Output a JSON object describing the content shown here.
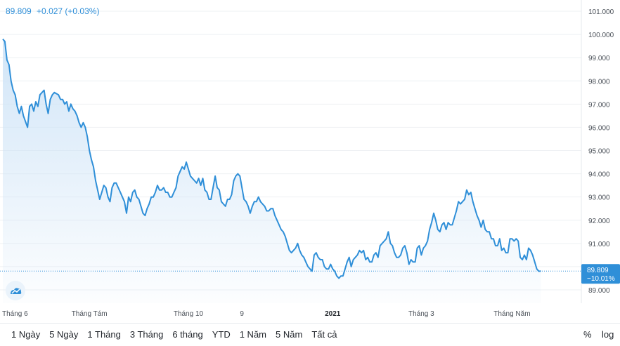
{
  "header": {
    "price": "89.809",
    "change": "+0.027 (+0.03%)"
  },
  "price_label": {
    "price": "89.809",
    "change_pct": "−10.01%"
  },
  "ranges": [
    "1 Ngày",
    "5 Ngày",
    "1 Tháng",
    "3 Tháng",
    "6 tháng",
    "YTD",
    "1 Năm",
    "5 Năm",
    "Tất cả"
  ],
  "scale": {
    "percent": "%",
    "log": "log"
  },
  "colors": {
    "line": "#2f8fd8",
    "fill_top": "#cfe4f7",
    "grid": "#eef0f3",
    "label_bg": "#2f8fd8"
  },
  "icons": {
    "logo": "tradingview-cloud-icon"
  },
  "chart_data": {
    "type": "area",
    "y_ticks": [
      "89.000",
      "90.000",
      "91.000",
      "92.000",
      "93.000",
      "94.000",
      "95.000",
      "96.000",
      "97.000",
      "98.000",
      "99.000",
      "100.000",
      "101.000"
    ],
    "x_ticks": [
      {
        "label": "Tháng 6",
        "x": 0,
        "bold": false
      },
      {
        "label": "Tháng Tám",
        "x": 42,
        "bold": false
      },
      {
        "label": "Tháng 10",
        "x": 90,
        "bold": false
      },
      {
        "label": "9",
        "x": 116,
        "bold": false
      },
      {
        "label": "2021",
        "x": 160,
        "bold": true
      },
      {
        "label": "Tháng 3",
        "x": 203,
        "bold": false
      },
      {
        "label": "Tháng Năm",
        "x": 247,
        "bold": false
      }
    ],
    "ylim": [
      88.1,
      101.3
    ],
    "xlim": [
      0,
      268
    ],
    "last_value": 89.809,
    "points": [
      [
        0,
        99.8
      ],
      [
        1,
        99.7
      ],
      [
        2,
        98.9
      ],
      [
        3,
        98.7
      ],
      [
        4,
        98.0
      ],
      [
        5,
        97.6
      ],
      [
        6,
        97.4
      ],
      [
        7,
        96.9
      ],
      [
        8,
        96.6
      ],
      [
        9,
        96.9
      ],
      [
        10,
        96.5
      ],
      [
        12,
        96.0
      ],
      [
        13,
        96.9
      ],
      [
        14,
        97.0
      ],
      [
        15,
        96.7
      ],
      [
        16,
        97.1
      ],
      [
        17,
        96.9
      ],
      [
        18,
        97.4
      ],
      [
        20,
        97.6
      ],
      [
        21,
        97.0
      ],
      [
        22,
        96.6
      ],
      [
        23,
        97.2
      ],
      [
        24,
        97.4
      ],
      [
        25,
        97.5
      ],
      [
        27,
        97.4
      ],
      [
        28,
        97.2
      ],
      [
        29,
        97.2
      ],
      [
        30,
        97.0
      ],
      [
        31,
        97.1
      ],
      [
        32,
        96.7
      ],
      [
        33,
        97.0
      ],
      [
        34,
        96.8
      ],
      [
        35,
        96.7
      ],
      [
        36,
        96.5
      ],
      [
        37,
        96.2
      ],
      [
        38,
        96.0
      ],
      [
        39,
        96.2
      ],
      [
        40,
        96.0
      ],
      [
        41,
        95.6
      ],
      [
        42,
        95.0
      ],
      [
        43,
        94.6
      ],
      [
        44,
        94.3
      ],
      [
        45,
        93.7
      ],
      [
        46,
        93.3
      ],
      [
        47,
        92.9
      ],
      [
        48,
        93.2
      ],
      [
        49,
        93.5
      ],
      [
        50,
        93.4
      ],
      [
        51,
        93.0
      ],
      [
        52,
        92.8
      ],
      [
        53,
        93.4
      ],
      [
        54,
        93.6
      ],
      [
        55,
        93.6
      ],
      [
        56,
        93.4
      ],
      [
        57,
        93.2
      ],
      [
        58,
        93.0
      ],
      [
        59,
        92.8
      ],
      [
        60,
        92.3
      ],
      [
        61,
        93.0
      ],
      [
        62,
        92.8
      ],
      [
        63,
        93.2
      ],
      [
        64,
        93.3
      ],
      [
        65,
        93.0
      ],
      [
        66,
        92.9
      ],
      [
        67,
        92.6
      ],
      [
        68,
        92.3
      ],
      [
        69,
        92.2
      ],
      [
        70,
        92.5
      ],
      [
        71,
        92.7
      ],
      [
        72,
        93.0
      ],
      [
        73,
        93.0
      ],
      [
        74,
        93.2
      ],
      [
        75,
        93.5
      ],
      [
        76,
        93.3
      ],
      [
        77,
        93.3
      ],
      [
        78,
        93.4
      ],
      [
        79,
        93.2
      ],
      [
        80,
        93.2
      ],
      [
        81,
        93.0
      ],
      [
        82,
        93.0
      ],
      [
        83,
        93.2
      ],
      [
        84,
        93.4
      ],
      [
        85,
        93.9
      ],
      [
        86,
        94.1
      ],
      [
        87,
        94.3
      ],
      [
        88,
        94.2
      ],
      [
        89,
        94.5
      ],
      [
        90,
        94.2
      ],
      [
        91,
        93.9
      ],
      [
        92,
        93.8
      ],
      [
        93,
        93.7
      ],
      [
        94,
        93.6
      ],
      [
        95,
        93.8
      ],
      [
        96,
        93.5
      ],
      [
        97,
        93.8
      ],
      [
        98,
        93.3
      ],
      [
        99,
        93.2
      ],
      [
        100,
        92.9
      ],
      [
        101,
        92.9
      ],
      [
        102,
        93.4
      ],
      [
        103,
        93.9
      ],
      [
        104,
        93.4
      ],
      [
        105,
        93.3
      ],
      [
        106,
        92.8
      ],
      [
        107,
        92.7
      ],
      [
        108,
        92.6
      ],
      [
        109,
        92.9
      ],
      [
        110,
        92.9
      ],
      [
        111,
        93.1
      ],
      [
        112,
        93.7
      ],
      [
        113,
        93.9
      ],
      [
        114,
        94.0
      ],
      [
        115,
        93.9
      ],
      [
        116,
        93.4
      ],
      [
        117,
        92.9
      ],
      [
        118,
        92.8
      ],
      [
        119,
        92.6
      ],
      [
        120,
        92.3
      ],
      [
        121,
        92.6
      ],
      [
        122,
        92.8
      ],
      [
        123,
        92.8
      ],
      [
        124,
        93.0
      ],
      [
        125,
        92.8
      ],
      [
        126,
        92.7
      ],
      [
        127,
        92.6
      ],
      [
        128,
        92.4
      ],
      [
        129,
        92.4
      ],
      [
        130,
        92.5
      ],
      [
        131,
        92.5
      ],
      [
        132,
        92.2
      ],
      [
        133,
        92.0
      ],
      [
        134,
        91.8
      ],
      [
        135,
        91.6
      ],
      [
        136,
        91.5
      ],
      [
        137,
        91.3
      ],
      [
        138,
        91.0
      ],
      [
        139,
        90.7
      ],
      [
        140,
        90.6
      ],
      [
        141,
        90.7
      ],
      [
        142,
        90.8
      ],
      [
        143,
        91.0
      ],
      [
        144,
        90.7
      ],
      [
        145,
        90.5
      ],
      [
        146,
        90.4
      ],
      [
        147,
        90.2
      ],
      [
        148,
        90.0
      ],
      [
        149,
        89.9
      ],
      [
        150,
        89.8
      ],
      [
        151,
        90.5
      ],
      [
        152,
        90.6
      ],
      [
        153,
        90.4
      ],
      [
        154,
        90.3
      ],
      [
        155,
        90.3
      ],
      [
        156,
        90.0
      ],
      [
        157,
        89.9
      ],
      [
        158,
        89.9
      ],
      [
        159,
        90.1
      ],
      [
        160,
        89.9
      ],
      [
        161,
        89.8
      ],
      [
        162,
        89.6
      ],
      [
        163,
        89.5
      ],
      [
        164,
        89.6
      ],
      [
        165,
        89.6
      ],
      [
        166,
        89.9
      ],
      [
        167,
        90.2
      ],
      [
        168,
        90.4
      ],
      [
        169,
        90.0
      ],
      [
        170,
        90.3
      ],
      [
        171,
        90.4
      ],
      [
        172,
        90.5
      ],
      [
        173,
        90.7
      ],
      [
        174,
        90.6
      ],
      [
        175,
        90.7
      ],
      [
        176,
        90.3
      ],
      [
        177,
        90.4
      ],
      [
        178,
        90.2
      ],
      [
        179,
        90.2
      ],
      [
        180,
        90.5
      ],
      [
        181,
        90.6
      ],
      [
        182,
        90.4
      ],
      [
        183,
        90.9
      ],
      [
        184,
        91.0
      ],
      [
        185,
        91.1
      ],
      [
        186,
        91.2
      ],
      [
        187,
        91.5
      ],
      [
        188,
        91.0
      ],
      [
        189,
        90.9
      ],
      [
        190,
        90.6
      ],
      [
        191,
        90.4
      ],
      [
        192,
        90.4
      ],
      [
        193,
        90.5
      ],
      [
        194,
        90.8
      ],
      [
        195,
        90.9
      ],
      [
        196,
        90.6
      ],
      [
        197,
        90.1
      ],
      [
        198,
        90.3
      ],
      [
        199,
        90.2
      ],
      [
        200,
        90.2
      ],
      [
        201,
        90.8
      ],
      [
        202,
        90.9
      ],
      [
        203,
        90.5
      ],
      [
        204,
        90.8
      ],
      [
        205,
        90.9
      ],
      [
        206,
        91.1
      ],
      [
        207,
        91.6
      ],
      [
        208,
        91.9
      ],
      [
        209,
        92.3
      ],
      [
        210,
        92.0
      ],
      [
        211,
        91.6
      ],
      [
        212,
        91.5
      ],
      [
        213,
        91.8
      ],
      [
        214,
        91.9
      ],
      [
        215,
        91.6
      ],
      [
        216,
        91.9
      ],
      [
        217,
        91.8
      ],
      [
        218,
        91.8
      ],
      [
        219,
        92.1
      ],
      [
        220,
        92.4
      ],
      [
        221,
        92.8
      ],
      [
        222,
        92.7
      ],
      [
        223,
        92.8
      ],
      [
        224,
        92.9
      ],
      [
        225,
        93.3
      ],
      [
        226,
        93.1
      ],
      [
        227,
        93.2
      ],
      [
        228,
        92.8
      ],
      [
        229,
        92.5
      ],
      [
        230,
        92.2
      ],
      [
        231,
        92.0
      ],
      [
        232,
        91.7
      ],
      [
        233,
        92.0
      ],
      [
        234,
        91.6
      ],
      [
        235,
        91.5
      ],
      [
        236,
        91.5
      ],
      [
        237,
        91.2
      ],
      [
        238,
        91.2
      ],
      [
        239,
        90.9
      ],
      [
        240,
        90.9
      ],
      [
        241,
        91.2
      ],
      [
        242,
        90.7
      ],
      [
        243,
        90.8
      ],
      [
        244,
        90.6
      ],
      [
        245,
        90.6
      ],
      [
        246,
        91.2
      ],
      [
        247,
        91.2
      ],
      [
        248,
        91.1
      ],
      [
        249,
        91.2
      ],
      [
        250,
        91.1
      ],
      [
        251,
        90.4
      ],
      [
        252,
        90.3
      ],
      [
        253,
        90.5
      ],
      [
        254,
        90.3
      ],
      [
        255,
        90.8
      ],
      [
        256,
        90.7
      ],
      [
        257,
        90.5
      ],
      [
        258,
        90.2
      ],
      [
        259,
        89.9
      ],
      [
        260,
        89.8
      ],
      [
        261,
        89.81
      ]
    ]
  }
}
